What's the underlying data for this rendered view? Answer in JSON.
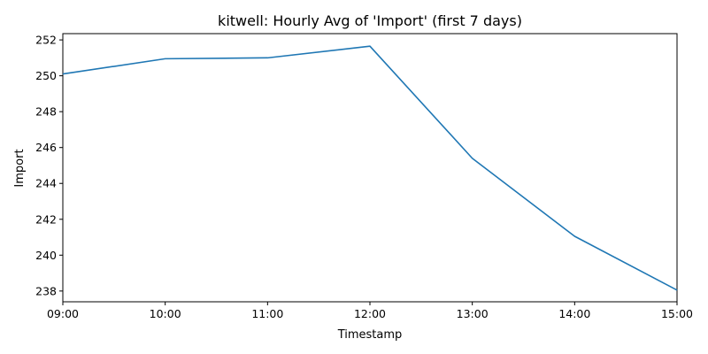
{
  "chart_data": {
    "type": "line",
    "title": "kitwell: Hourly Avg of 'Import' (first 7 days)",
    "xlabel": "Timestamp",
    "ylabel": "Import",
    "categories": [
      "09:00",
      "10:00",
      "11:00",
      "12:00",
      "13:00",
      "14:00",
      "15:00"
    ],
    "series": [
      {
        "values": [
          250.1,
          250.95,
          251.0,
          251.65,
          245.4,
          241.05,
          238.05
        ]
      }
    ],
    "ylim": [
      237.4,
      252.35
    ],
    "yticks": [
      238,
      240,
      242,
      244,
      246,
      248,
      250,
      252
    ],
    "grid": false,
    "line_color": "#1f77b4"
  }
}
